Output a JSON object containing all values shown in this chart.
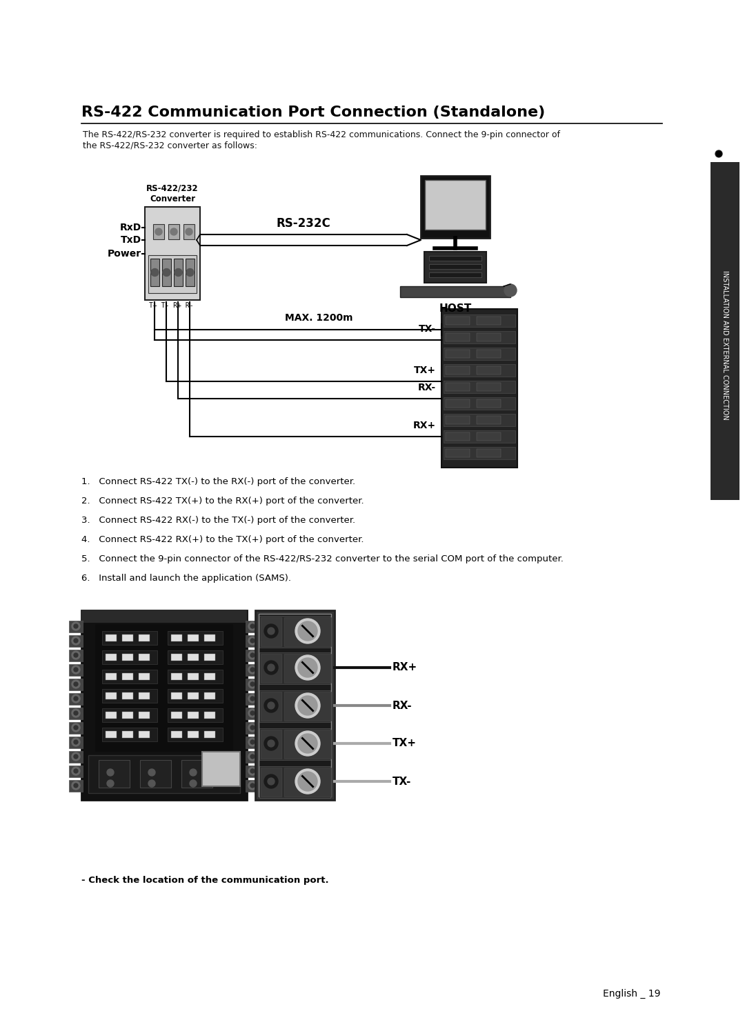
{
  "page_bg": "#ffffff",
  "title": "RS-422 Communication Port Connection (Standalone)",
  "subtitle_line1": "The RS-422/RS-232 converter is required to establish RS-422 communications. Connect the 9-pin connector of",
  "subtitle_line2": "the RS-422/RS-232 converter as follows:",
  "title_fontsize": 16,
  "subtitle_fontsize": 9,
  "converter_label_line1": "RS-422/232",
  "converter_label_line2": "Converter",
  "rxd_label": "RxD",
  "txd_label": "TxD",
  "power_label": "Power",
  "rs232c_label": "RS-232C",
  "host_label": "HOST",
  "max_label": "MAX. 1200m",
  "tx_minus_label": "TX-",
  "tx_plus_label": "TX+",
  "rx_minus_label": "RX-",
  "rx_plus_label": "RX+",
  "pin_label": "T+ T- R+ R-",
  "instructions": [
    "1.   Connect RS-422 TX(-) to the RX(-) port of the converter.",
    "2.   Connect RS-422 TX(+) to the RX(+) port of the converter.",
    "3.   Connect RS-422 RX(-) to the TX(-) port of the converter.",
    "4.   Connect RS-422 RX(+) to the TX(+) port of the converter.",
    "5.   Connect the 9-pin connector of the RS-422/RS-232 converter to the serial COM port of the computer.",
    "6.   Install and launch the application (SAMS)."
  ],
  "bottom_note": "- Check the location of the communication port.",
  "page_number": "English _ 19",
  "sidebar_text": "INSTALLATION AND EXTERNAL CONNECTION",
  "rx_plus_label2": "RX+",
  "rx_minus_label2": "RX-",
  "tx_plus_label2": "TX+",
  "tx_minus_label2": "TX-"
}
